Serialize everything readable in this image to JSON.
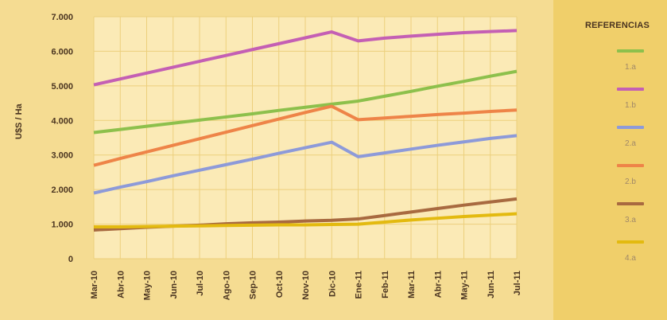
{
  "chart_data": {
    "type": "line",
    "ylabel": "U$S / Ha",
    "xlabel": "",
    "categories": [
      "Mar-10",
      "Abr-10",
      "May-10",
      "Jun-10",
      "Jul-10",
      "Ago-10",
      "Sep-10",
      "Oct-10",
      "Nov-10",
      "Dic-10",
      "Ene-11",
      "Feb-11",
      "Mar-11",
      "Abr-11",
      "May-11",
      "Jun-11",
      "Jul-11"
    ],
    "ylim": [
      0,
      7000
    ],
    "yticks": [
      0,
      1000,
      2000,
      3000,
      4000,
      5000,
      6000,
      7000
    ],
    "ytick_labels": [
      "0",
      "1.000",
      "2.000",
      "3.000",
      "4.000",
      "5.000",
      "6.000",
      "7.000"
    ],
    "grid": true,
    "legend_title": "REFERENCIAS",
    "legend_position": "right",
    "series": [
      {
        "name": "1.a",
        "color": "#8dc04c",
        "values": [
          3650,
          3740,
          3830,
          3920,
          4010,
          4100,
          4190,
          4290,
          4380,
          4470,
          4560,
          4700,
          4840,
          4990,
          5130,
          5280,
          5420
        ]
      },
      {
        "name": "1.b",
        "color": "#c45fb4",
        "values": [
          5030,
          5200,
          5370,
          5540,
          5710,
          5880,
          6050,
          6220,
          6390,
          6560,
          6300,
          6380,
          6440,
          6490,
          6540,
          6570,
          6600
        ]
      },
      {
        "name": "2.a",
        "color": "#8d9ad9",
        "values": [
          1900,
          2070,
          2230,
          2400,
          2560,
          2720,
          2880,
          3050,
          3210,
          3370,
          2950,
          3060,
          3170,
          3280,
          3380,
          3480,
          3560
        ]
      },
      {
        "name": "2.b",
        "color": "#ee8448",
        "values": [
          2700,
          2900,
          3090,
          3280,
          3470,
          3660,
          3850,
          4040,
          4230,
          4410,
          4020,
          4070,
          4120,
          4170,
          4210,
          4260,
          4300
        ]
      },
      {
        "name": "3.a",
        "color": "#a86a40",
        "values": [
          830,
          870,
          910,
          940,
          970,
          1010,
          1040,
          1060,
          1090,
          1110,
          1150,
          1250,
          1350,
          1450,
          1550,
          1640,
          1730
        ]
      },
      {
        "name": "4.a",
        "color": "#e3ba10",
        "values": [
          920,
          920,
          930,
          940,
          950,
          960,
          970,
          980,
          980,
          990,
          1000,
          1060,
          1120,
          1170,
          1220,
          1260,
          1300
        ]
      }
    ]
  }
}
